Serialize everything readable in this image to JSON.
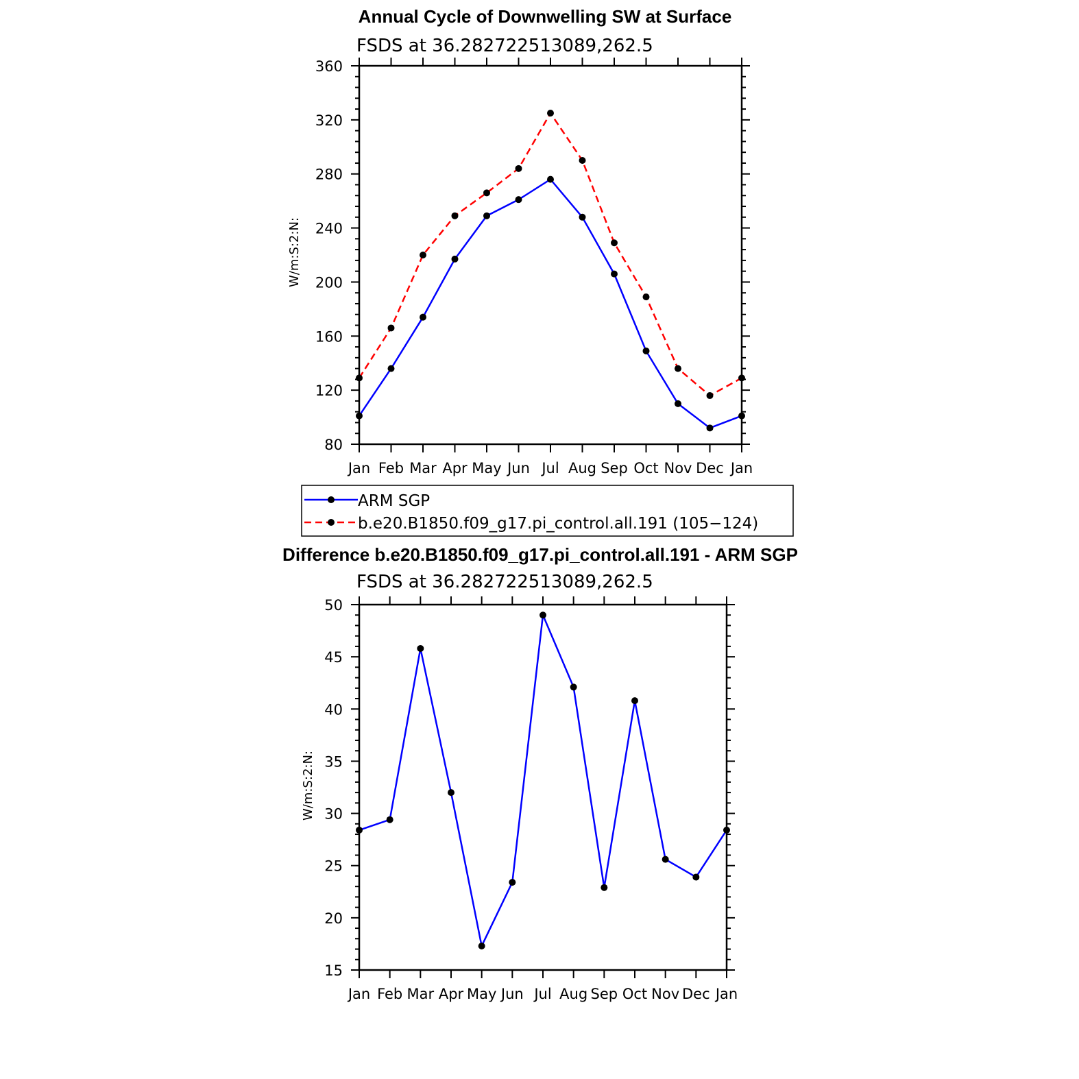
{
  "chart_data": [
    {
      "type": "line",
      "title": "Annual Cycle of Downwelling SW at Surface",
      "subtitle": "FSDS at 36.282722513089,262.5",
      "ylabel": "W/m:S:2:N:",
      "categories": [
        "Jan",
        "Feb",
        "Mar",
        "Apr",
        "May",
        "Jun",
        "Jul",
        "Aug",
        "Sep",
        "Oct",
        "Nov",
        "Dec",
        "Jan"
      ],
      "ylim": [
        80,
        360
      ],
      "yticks": [
        80,
        120,
        160,
        200,
        240,
        280,
        320,
        360
      ],
      "series": [
        {
          "name": "ARM SGP",
          "color": "#0000ff",
          "dash": false,
          "values": [
            101,
            136,
            174,
            217,
            249,
            261,
            276,
            248,
            206,
            149,
            110,
            92,
            101
          ]
        },
        {
          "name": "b.e20.B1850.f09_g17.pi_control.all.191 (105−124)",
          "color": "#ff0000",
          "dash": true,
          "values": [
            129,
            166,
            220,
            249,
            266,
            284,
            325,
            290,
            229,
            189,
            136,
            116,
            129
          ]
        }
      ],
      "legend": "below"
    },
    {
      "type": "line",
      "title": "Difference b.e20.B1850.f09_g17.pi_control.all.191 - ARM SGP",
      "subtitle": "FSDS at 36.282722513089,262.5",
      "ylabel": "W/m:S:2:N:",
      "categories": [
        "Jan",
        "Feb",
        "Mar",
        "Apr",
        "May",
        "Jun",
        "Jul",
        "Aug",
        "Sep",
        "Oct",
        "Nov",
        "Dec",
        "Jan"
      ],
      "ylim": [
        15,
        50
      ],
      "yticks": [
        15,
        20,
        25,
        30,
        35,
        40,
        45,
        50
      ],
      "series": [
        {
          "color": "#0000ff",
          "dash": false,
          "values": [
            28.4,
            29.4,
            45.8,
            32.0,
            17.3,
            23.4,
            49.0,
            42.1,
            22.9,
            40.8,
            25.6,
            23.9,
            28.4
          ]
        }
      ]
    }
  ]
}
